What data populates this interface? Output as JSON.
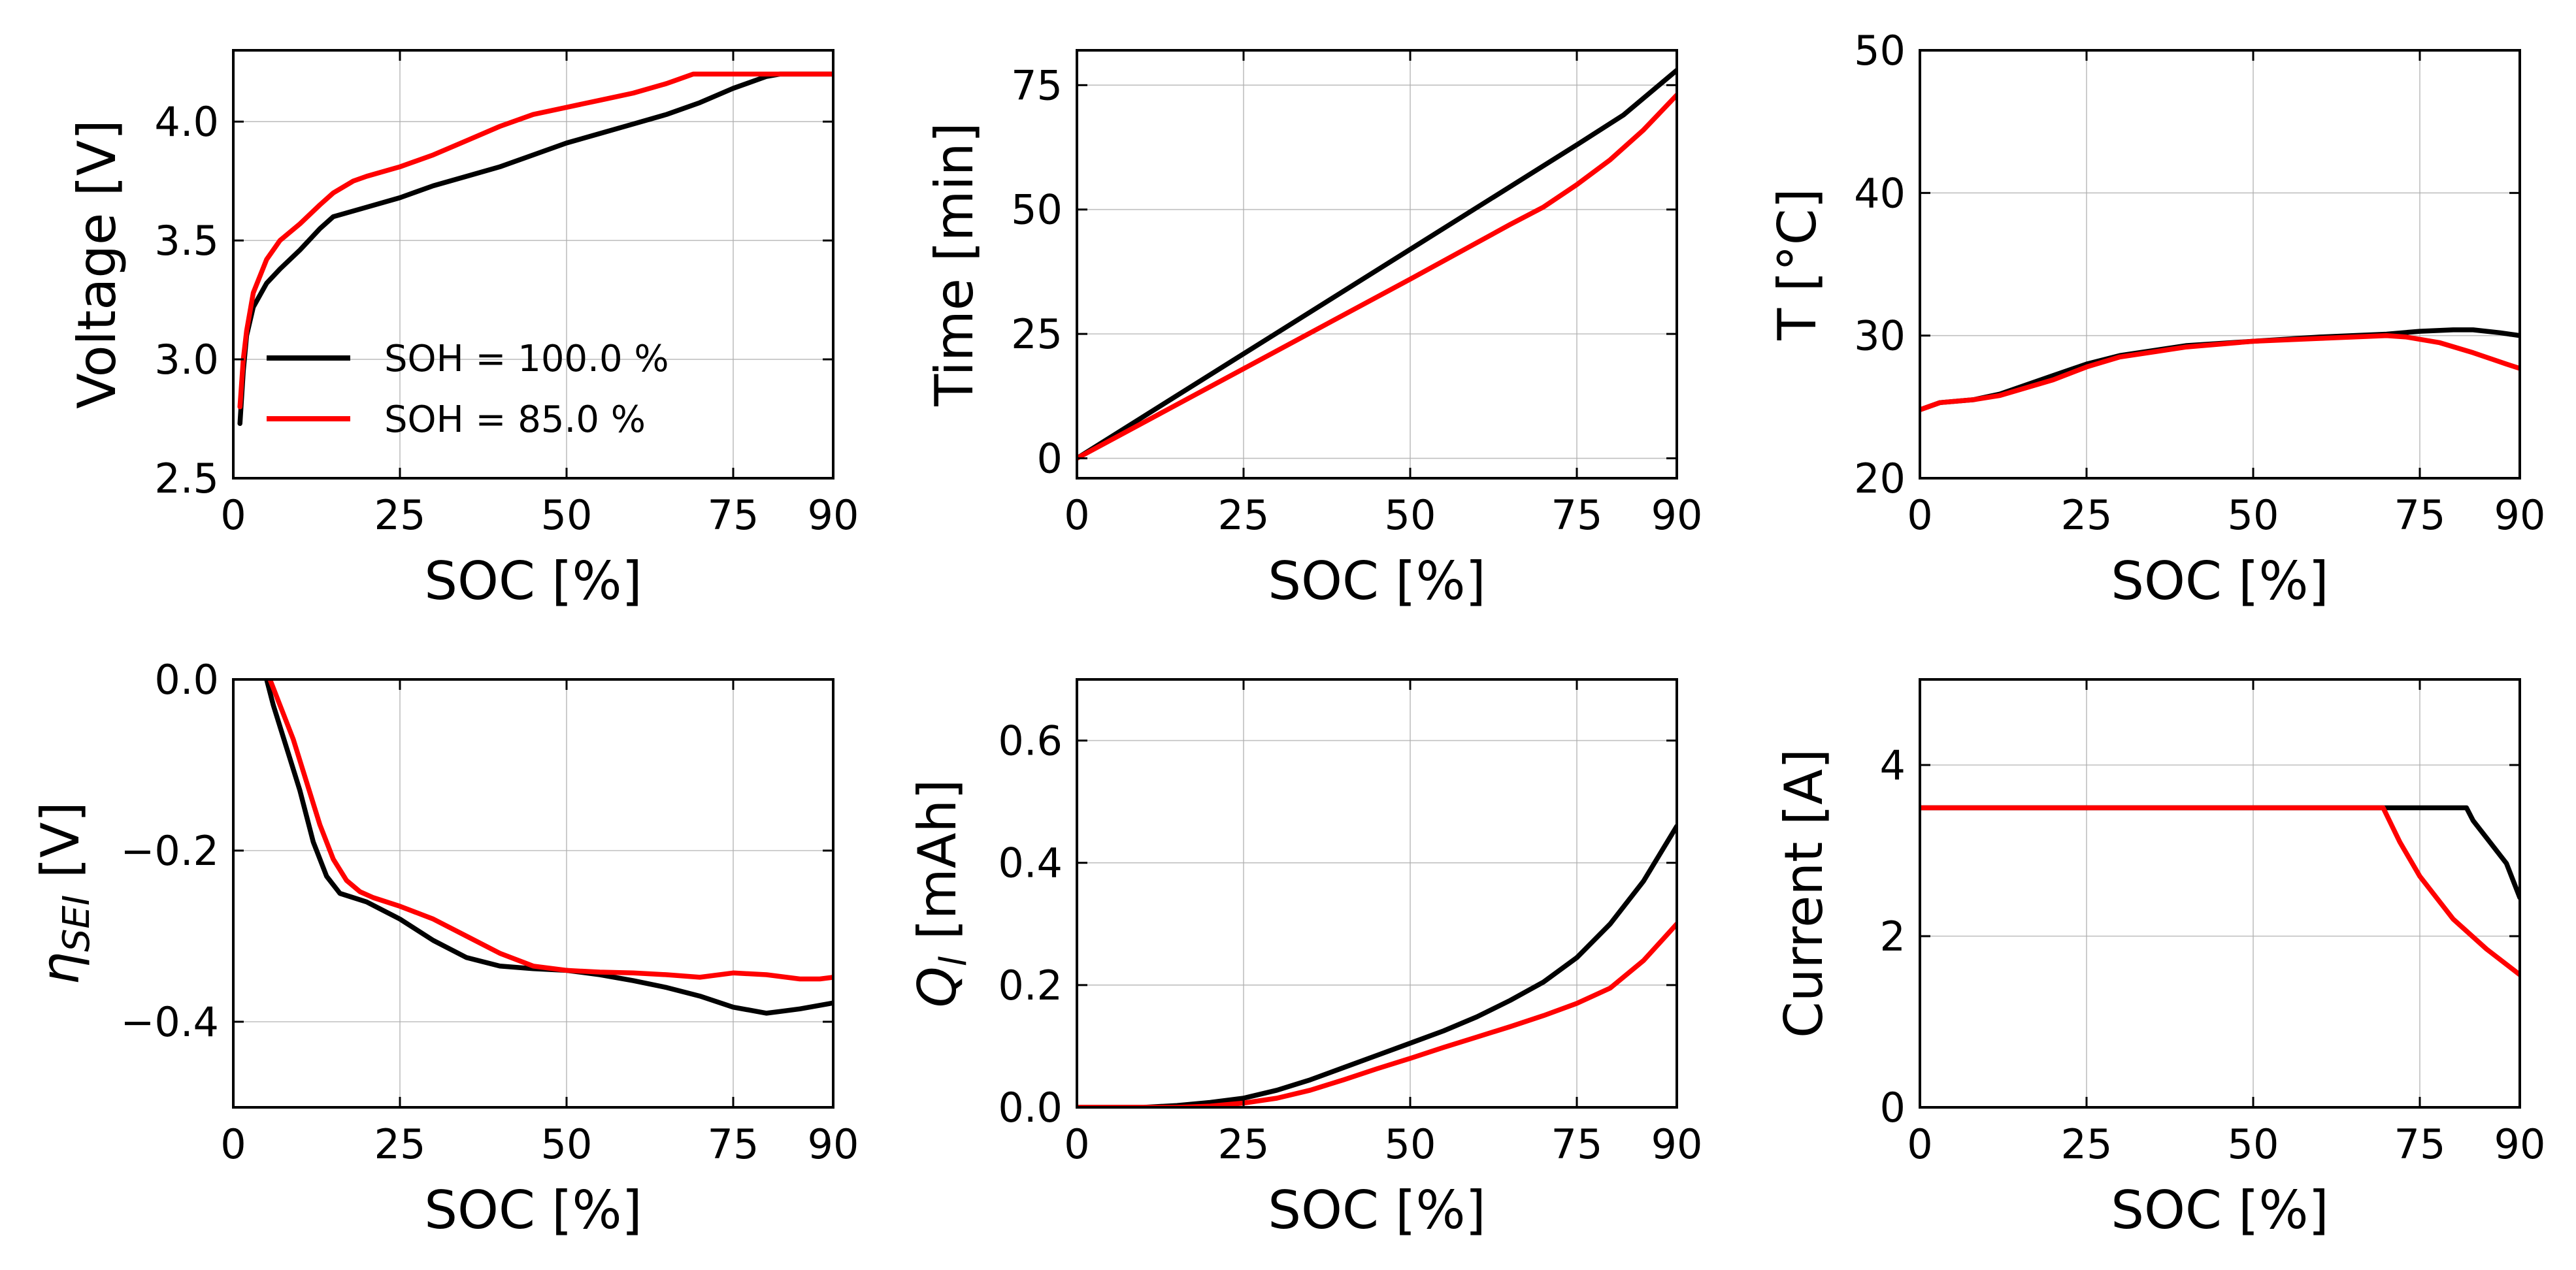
{
  "colors": {
    "soh_100": "#000000",
    "soh_85": "#ff0000"
  },
  "legend": {
    "placement": "lower-right of first subplot",
    "entries": [
      "SOH = 100.0 %",
      "SOH = 85.0 %"
    ]
  },
  "chart_data": [
    {
      "type": "line",
      "xlabel": "SOC [%]",
      "ylabel": "Voltage [V]",
      "xlim": [
        0,
        90
      ],
      "ylim": [
        2.5,
        4.3
      ],
      "xticks": [
        0,
        25,
        50,
        75,
        90
      ],
      "xtick_labels": [
        "0",
        "25",
        "50",
        "75",
        "90"
      ],
      "yticks": [
        2.5,
        3.0,
        3.5,
        4.0
      ],
      "ytick_labels": [
        "2.5",
        "3.0",
        "3.5",
        "4.0"
      ],
      "grid": true,
      "series": [
        {
          "name": "SOH = 100.0 %",
          "color": "#000000",
          "x": [
            1,
            1.5,
            2,
            3,
            5,
            7,
            10,
            13,
            15,
            20,
            25,
            30,
            35,
            40,
            45,
            50,
            55,
            60,
            65,
            70,
            75,
            80,
            82,
            85,
            90
          ],
          "y": [
            2.73,
            2.95,
            3.1,
            3.22,
            3.32,
            3.38,
            3.46,
            3.55,
            3.6,
            3.64,
            3.68,
            3.73,
            3.77,
            3.81,
            3.86,
            3.91,
            3.95,
            3.99,
            4.03,
            4.08,
            4.14,
            4.19,
            4.2,
            4.2,
            4.2
          ]
        },
        {
          "name": "SOH = 85.0 %",
          "color": "#ff0000",
          "x": [
            1,
            1.5,
            2,
            3,
            5,
            7,
            10,
            13,
            15,
            18,
            20,
            25,
            30,
            35,
            40,
            45,
            50,
            55,
            60,
            65,
            69,
            70,
            75,
            80,
            85,
            90
          ],
          "y": [
            2.8,
            3.0,
            3.12,
            3.28,
            3.42,
            3.5,
            3.57,
            3.65,
            3.7,
            3.75,
            3.77,
            3.81,
            3.86,
            3.92,
            3.98,
            4.03,
            4.06,
            4.09,
            4.12,
            4.16,
            4.2,
            4.2,
            4.2,
            4.2,
            4.2,
            4.2
          ]
        }
      ]
    },
    {
      "type": "line",
      "xlabel": "SOC [%]",
      "ylabel": "Time [min]",
      "xlim": [
        0,
        90
      ],
      "ylim": [
        -4,
        82
      ],
      "xticks": [
        0,
        25,
        50,
        75,
        90
      ],
      "xtick_labels": [
        "0",
        "25",
        "50",
        "75",
        "90"
      ],
      "yticks": [
        0,
        25,
        50,
        75
      ],
      "ytick_labels": [
        "0",
        "25",
        "50",
        "75"
      ],
      "grid": true,
      "series": [
        {
          "name": "SOH = 100.0 %",
          "color": "#000000",
          "x": [
            0,
            25,
            50,
            75,
            82,
            90
          ],
          "y": [
            0,
            21,
            42,
            63,
            69,
            78
          ]
        },
        {
          "name": "SOH = 85.0 %",
          "color": "#ff0000",
          "x": [
            0,
            25,
            50,
            65,
            70,
            75,
            80,
            85,
            90
          ],
          "y": [
            0,
            18,
            36,
            47,
            50.5,
            55,
            60,
            66,
            73
          ]
        }
      ]
    },
    {
      "type": "line",
      "xlabel": "SOC [%]",
      "ylabel": "T [°C]",
      "xlim": [
        0,
        90
      ],
      "ylim": [
        20,
        50
      ],
      "xticks": [
        0,
        25,
        50,
        75,
        90
      ],
      "xtick_labels": [
        "0",
        "25",
        "50",
        "75",
        "90"
      ],
      "yticks": [
        20,
        30,
        40,
        50
      ],
      "ytick_labels": [
        "20",
        "30",
        "40",
        "50"
      ],
      "grid": true,
      "series": [
        {
          "name": "SOH = 100.0 %",
          "color": "#000000",
          "x": [
            0,
            3,
            8,
            12,
            20,
            25,
            30,
            40,
            50,
            60,
            70,
            75,
            80,
            83,
            87,
            90
          ],
          "y": [
            24.8,
            25.3,
            25.5,
            25.9,
            27.2,
            28.0,
            28.6,
            29.3,
            29.6,
            29.9,
            30.1,
            30.3,
            30.4,
            30.4,
            30.2,
            30.0
          ]
        },
        {
          "name": "SOH = 85.0 %",
          "color": "#ff0000",
          "x": [
            0,
            3,
            8,
            12,
            20,
            25,
            30,
            40,
            50,
            60,
            65,
            70,
            73,
            78,
            83,
            88,
            90
          ],
          "y": [
            24.8,
            25.3,
            25.5,
            25.8,
            26.9,
            27.8,
            28.5,
            29.2,
            29.6,
            29.8,
            29.9,
            30.0,
            29.9,
            29.5,
            28.8,
            28.0,
            27.7
          ]
        }
      ]
    },
    {
      "type": "line",
      "xlabel": "SOC [%]",
      "ylabel": "ηSEI [V]",
      "ylabel_main": "η",
      "ylabel_sub": "SEI",
      "ylabel_unit": " [V]",
      "xlim": [
        0,
        90
      ],
      "ylim": [
        -0.5,
        0.0
      ],
      "xticks": [
        0,
        25,
        50,
        75,
        90
      ],
      "xtick_labels": [
        "0",
        "25",
        "50",
        "75",
        "90"
      ],
      "yticks": [
        0.0,
        -0.2,
        -0.4
      ],
      "ytick_labels": [
        "0.0",
        "−0.2",
        "−0.4"
      ],
      "grid": true,
      "series": [
        {
          "name": "SOH = 100.0 %",
          "color": "#000000",
          "x": [
            5,
            6,
            8,
            10,
            12,
            14,
            16,
            18,
            20,
            25,
            30,
            35,
            40,
            45,
            50,
            55,
            60,
            65,
            70,
            75,
            80,
            82,
            85,
            90
          ],
          "y": [
            0.0,
            -0.03,
            -0.08,
            -0.13,
            -0.19,
            -0.23,
            -0.25,
            -0.255,
            -0.26,
            -0.28,
            -0.305,
            -0.325,
            -0.335,
            -0.338,
            -0.34,
            -0.345,
            -0.352,
            -0.36,
            -0.37,
            -0.383,
            -0.39,
            -0.388,
            -0.385,
            -0.378
          ]
        },
        {
          "name": "SOH = 85.0 %",
          "color": "#ff0000",
          "x": [
            5.5,
            7,
            9,
            11,
            13,
            15,
            17,
            19,
            21,
            25,
            30,
            35,
            40,
            45,
            50,
            55,
            60,
            65,
            70,
            75,
            80,
            85,
            88,
            90
          ],
          "y": [
            0.0,
            -0.03,
            -0.07,
            -0.12,
            -0.17,
            -0.21,
            -0.235,
            -0.248,
            -0.255,
            -0.265,
            -0.28,
            -0.3,
            -0.32,
            -0.335,
            -0.34,
            -0.342,
            -0.343,
            -0.345,
            -0.348,
            -0.343,
            -0.345,
            -0.35,
            -0.35,
            -0.348
          ]
        }
      ]
    },
    {
      "type": "line",
      "xlabel": "SOC [%]",
      "ylabel": "Ql [mAh]",
      "ylabel_main": "Q",
      "ylabel_sub": "l",
      "ylabel_unit": " [mAh]",
      "xlim": [
        0,
        90
      ],
      "ylim": [
        0.0,
        0.7
      ],
      "xticks": [
        0,
        25,
        50,
        75,
        90
      ],
      "xtick_labels": [
        "0",
        "25",
        "50",
        "75",
        "90"
      ],
      "yticks": [
        0.0,
        0.2,
        0.4,
        0.6
      ],
      "ytick_labels": [
        "0.0",
        "0.2",
        "0.4",
        "0.6"
      ],
      "grid": true,
      "series": [
        {
          "name": "SOH = 100.0 %",
          "color": "#000000",
          "x": [
            0,
            10,
            15,
            20,
            25,
            30,
            35,
            40,
            45,
            50,
            55,
            60,
            65,
            70,
            75,
            80,
            85,
            90
          ],
          "y": [
            0,
            0.0,
            0.003,
            0.008,
            0.015,
            0.028,
            0.045,
            0.065,
            0.085,
            0.105,
            0.125,
            0.148,
            0.175,
            0.205,
            0.245,
            0.3,
            0.37,
            0.46
          ]
        },
        {
          "name": "SOH = 85.0 %",
          "color": "#ff0000",
          "x": [
            0,
            15,
            20,
            25,
            30,
            35,
            40,
            45,
            50,
            55,
            60,
            65,
            70,
            75,
            80,
            85,
            90
          ],
          "y": [
            0,
            0.0,
            0.002,
            0.007,
            0.015,
            0.028,
            0.045,
            0.063,
            0.08,
            0.098,
            0.115,
            0.132,
            0.15,
            0.17,
            0.195,
            0.24,
            0.3
          ]
        }
      ]
    },
    {
      "type": "line",
      "xlabel": "SOC [%]",
      "ylabel": "Current [A]",
      "xlim": [
        0,
        90
      ],
      "ylim": [
        0,
        5
      ],
      "xticks": [
        0,
        25,
        50,
        75,
        90
      ],
      "xtick_labels": [
        "0",
        "25",
        "50",
        "75",
        "90"
      ],
      "yticks": [
        0,
        2,
        4
      ],
      "ytick_labels": [
        "0",
        "2",
        "4"
      ],
      "grid": true,
      "series": [
        {
          "name": "SOH = 100.0 %",
          "color": "#000000",
          "x": [
            0,
            82,
            83,
            85,
            88,
            90
          ],
          "y": [
            3.5,
            3.5,
            3.35,
            3.15,
            2.85,
            2.45
          ]
        },
        {
          "name": "SOH = 85.0 %",
          "color": "#ff0000",
          "x": [
            0,
            69.5,
            72,
            75,
            80,
            85,
            90
          ],
          "y": [
            3.5,
            3.5,
            3.1,
            2.7,
            2.2,
            1.85,
            1.55
          ]
        }
      ]
    }
  ]
}
